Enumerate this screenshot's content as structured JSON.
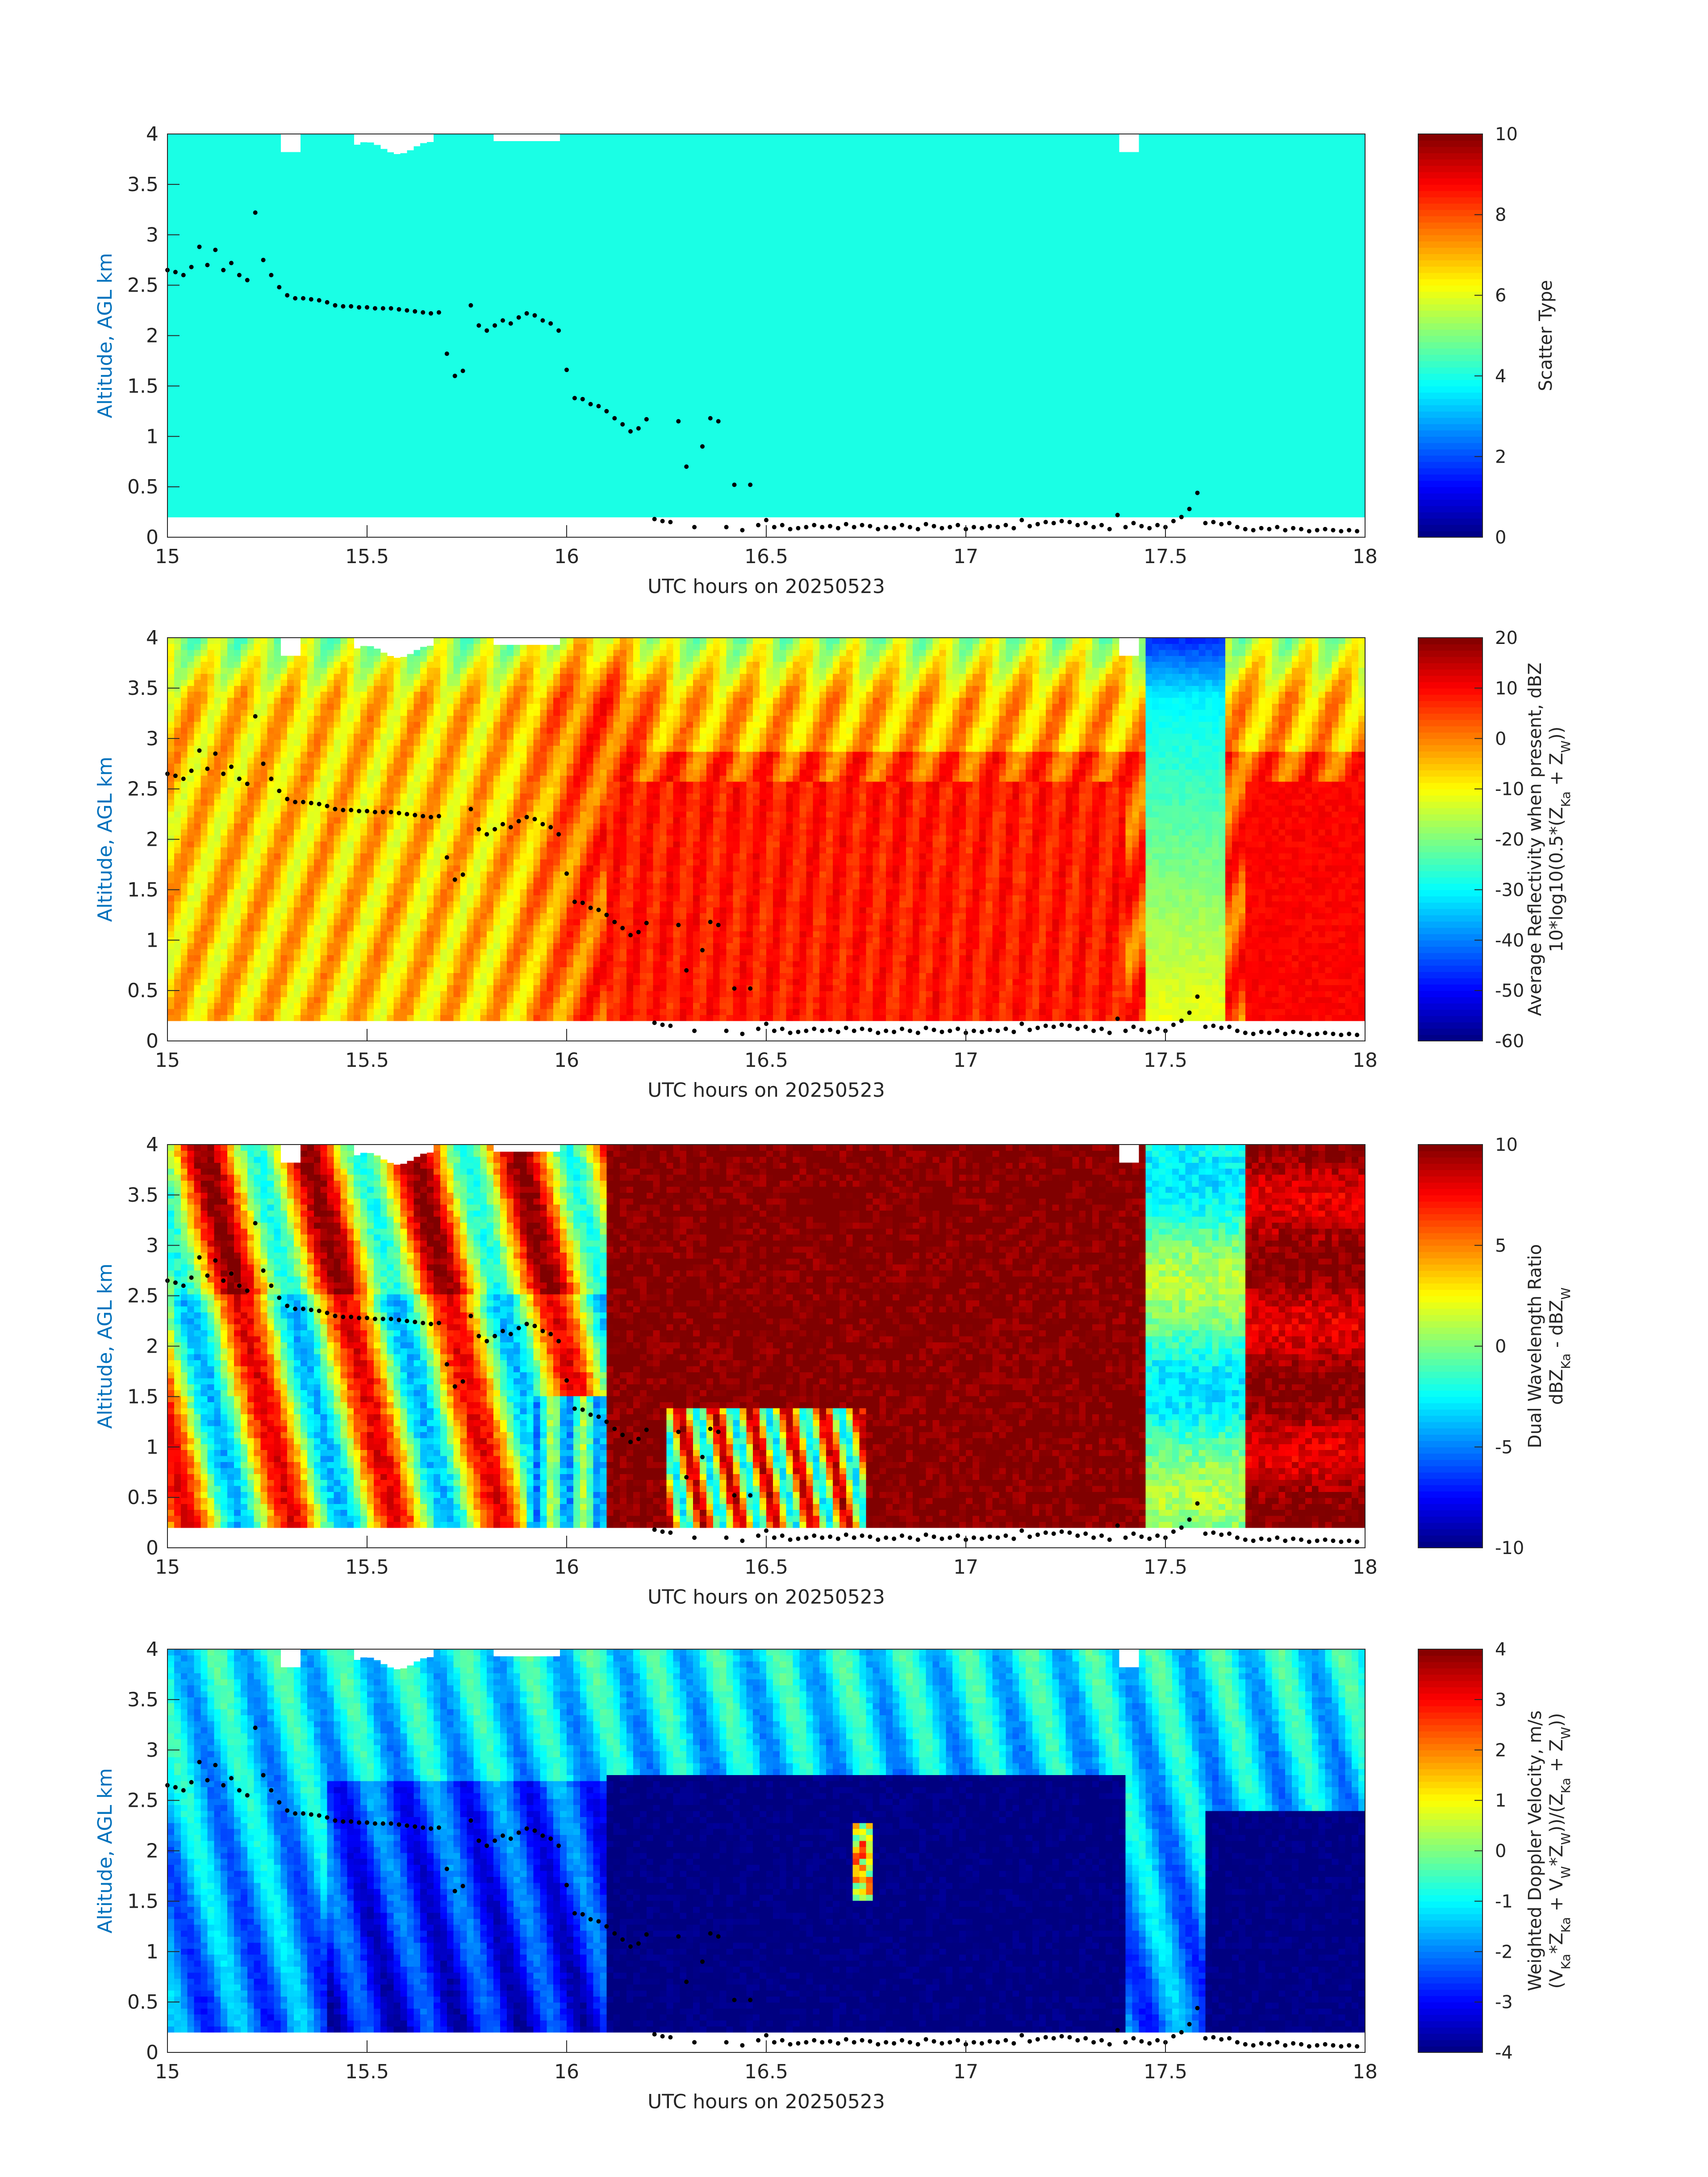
{
  "figure": {
    "background": "#ffffff",
    "axis_label_color": "#0072bd",
    "cloud_base_dot_color": "#000000"
  },
  "chart_data": [
    {
      "type": "heatmap",
      "xlabel": "UTC hours on 20250523",
      "ylabel": "Altitude, AGL km",
      "xlim": [
        15,
        18
      ],
      "ylim": [
        0,
        4
      ],
      "xticks": [
        "15",
        "15.5",
        "16",
        "16.5",
        "17",
        "17.5",
        "18"
      ],
      "yticks": [
        "0",
        "0.5",
        "1",
        "1.5",
        "2",
        "2.5",
        "3",
        "3.5",
        "4"
      ],
      "colorbar": {
        "label_lines": [
          "Scatter Type"
        ],
        "min": 0,
        "max": 10,
        "ticks": [
          "0",
          "2",
          "4",
          "6",
          "8",
          "10"
        ]
      },
      "colormap": "jet",
      "field": "scatter_type",
      "note": "uniform value ~4 (cyan) everywhere above ~0.2 km"
    },
    {
      "type": "heatmap",
      "xlabel": "UTC hours on 20250523",
      "ylabel": "Altitude, AGL km",
      "xlim": [
        15,
        18
      ],
      "ylim": [
        0,
        4
      ],
      "xticks": [
        "15",
        "15.5",
        "16",
        "16.5",
        "17",
        "17.5",
        "18"
      ],
      "yticks": [
        "0",
        "0.5",
        "1",
        "1.5",
        "2",
        "2.5",
        "3",
        "3.5",
        "4"
      ],
      "colorbar": {
        "label_lines": [
          "Average Reflectivity when present, dBZ",
          "10*log10(0.5*(Z_Ka + Z_W))"
        ],
        "min": -60,
        "max": 20,
        "ticks": [
          "-60",
          "-50",
          "-40",
          "-30",
          "-20",
          "-10",
          "0",
          "10",
          "20"
        ]
      },
      "colormap": "jet",
      "field": "reflectivity"
    },
    {
      "type": "heatmap",
      "xlabel": "UTC hours on 20250523",
      "ylabel": "Altitude, AGL km",
      "xlim": [
        15,
        18
      ],
      "ylim": [
        0,
        4
      ],
      "xticks": [
        "15",
        "15.5",
        "16",
        "16.5",
        "17",
        "17.5",
        "18"
      ],
      "yticks": [
        "0",
        "0.5",
        "1",
        "1.5",
        "2",
        "2.5",
        "3",
        "3.5",
        "4"
      ],
      "colorbar": {
        "label_lines": [
          "Dual Wavelength Ratio",
          "dBZ_Ka - dBZ_W"
        ],
        "min": -10,
        "max": 10,
        "ticks": [
          "-10",
          "-5",
          "0",
          "5",
          "10"
        ]
      },
      "colormap": "jet",
      "field": "dwr"
    },
    {
      "type": "heatmap",
      "xlabel": "UTC hours on 20250523",
      "ylabel": "Altitude, AGL km",
      "xlim": [
        15,
        18
      ],
      "ylim": [
        0,
        4
      ],
      "xticks": [
        "15",
        "15.5",
        "16",
        "16.5",
        "17",
        "17.5",
        "18"
      ],
      "yticks": [
        "0",
        "0.5",
        "1",
        "1.5",
        "2",
        "2.5",
        "3",
        "3.5",
        "4"
      ],
      "colorbar": {
        "label_lines": [
          "Weighted Doppler Velocity, m/s",
          "(V_Ka*Z_Ka + V_W*Z_W))/(Z_Ka + Z_W))"
        ],
        "min": -4,
        "max": 4,
        "ticks": [
          "-4",
          "-3",
          "-2",
          "-1",
          "0",
          "1",
          "2",
          "3",
          "4"
        ]
      },
      "colormap": "jet",
      "field": "velocity"
    }
  ],
  "cloud_base": {
    "x": [
      15.0,
      15.02,
      15.04,
      15.06,
      15.08,
      15.1,
      15.12,
      15.14,
      15.16,
      15.18,
      15.2,
      15.22,
      15.24,
      15.26,
      15.28,
      15.3,
      15.32,
      15.34,
      15.36,
      15.38,
      15.4,
      15.42,
      15.44,
      15.46,
      15.48,
      15.5,
      15.52,
      15.54,
      15.56,
      15.58,
      15.6,
      15.62,
      15.64,
      15.66,
      15.68,
      15.7,
      15.72,
      15.74,
      15.76,
      15.78,
      15.8,
      15.82,
      15.84,
      15.86,
      15.88,
      15.9,
      15.92,
      15.94,
      15.96,
      15.98,
      16.0,
      16.02,
      16.04,
      16.06,
      16.08,
      16.1,
      16.12,
      16.14,
      16.16,
      16.18,
      16.2,
      16.22,
      16.24,
      16.26,
      16.28,
      16.3,
      16.32,
      16.34,
      16.36,
      16.38,
      16.4,
      16.42,
      16.44,
      16.46,
      16.48,
      16.5,
      16.52,
      16.54,
      16.56,
      16.58,
      16.6,
      16.62,
      16.64,
      16.66,
      16.68,
      16.7,
      16.72,
      16.74,
      16.76,
      16.78,
      16.8,
      16.82,
      16.84,
      16.86,
      16.88,
      16.9,
      16.92,
      16.94,
      16.96,
      16.98,
      17.0,
      17.02,
      17.04,
      17.06,
      17.08,
      17.1,
      17.12,
      17.14,
      17.16,
      17.18,
      17.2,
      17.22,
      17.24,
      17.26,
      17.28,
      17.3,
      17.32,
      17.34,
      17.36,
      17.38,
      17.4,
      17.42,
      17.44,
      17.46,
      17.48,
      17.5,
      17.52,
      17.54,
      17.56,
      17.58,
      17.6,
      17.62,
      17.64,
      17.66,
      17.68,
      17.7,
      17.72,
      17.74,
      17.76,
      17.78,
      17.8,
      17.82,
      17.84,
      17.86,
      17.88,
      17.9,
      17.92,
      17.94,
      17.96,
      17.98
    ],
    "y": [
      2.65,
      2.63,
      2.6,
      2.68,
      2.88,
      2.7,
      2.85,
      2.65,
      2.72,
      2.6,
      2.55,
      3.22,
      2.75,
      2.6,
      2.48,
      2.4,
      2.37,
      2.37,
      2.36,
      2.35,
      2.33,
      2.3,
      2.29,
      2.29,
      2.28,
      2.28,
      2.27,
      2.27,
      2.27,
      2.26,
      2.25,
      2.24,
      2.23,
      2.22,
      2.23,
      1.82,
      1.6,
      1.65,
      2.3,
      2.1,
      2.05,
      2.1,
      2.15,
      2.12,
      2.18,
      2.22,
      2.2,
      2.15,
      2.12,
      2.05,
      1.66,
      1.38,
      1.37,
      1.32,
      1.3,
      1.25,
      1.18,
      1.12,
      1.05,
      1.08,
      1.17,
      0.18,
      0.16,
      0.15,
      1.15,
      0.7,
      0.1,
      0.9,
      1.18,
      1.15,
      0.1,
      0.52,
      0.07,
      0.52,
      0.12,
      0.17,
      0.1,
      0.12,
      0.08,
      0.09,
      0.1,
      0.12,
      0.1,
      0.11,
      0.09,
      0.13,
      0.1,
      0.12,
      0.11,
      0.08,
      0.1,
      0.09,
      0.12,
      0.1,
      0.08,
      0.13,
      0.11,
      0.09,
      0.1,
      0.12,
      0.08,
      0.1,
      0.09,
      0.11,
      0.1,
      0.12,
      0.09,
      0.17,
      0.11,
      0.13,
      0.15,
      0.14,
      0.16,
      0.15,
      0.12,
      0.14,
      0.1,
      0.12,
      0.08,
      0.22,
      0.1,
      0.14,
      0.11,
      0.09,
      0.12,
      0.1,
      0.16,
      0.2,
      0.28,
      0.44,
      0.14,
      0.15,
      0.13,
      0.14,
      0.1,
      0.08,
      0.07,
      0.09,
      0.08,
      0.1,
      0.07,
      0.09,
      0.08,
      0.06,
      0.07,
      0.08,
      0.07,
      0.06,
      0.07,
      0.06
    ]
  }
}
